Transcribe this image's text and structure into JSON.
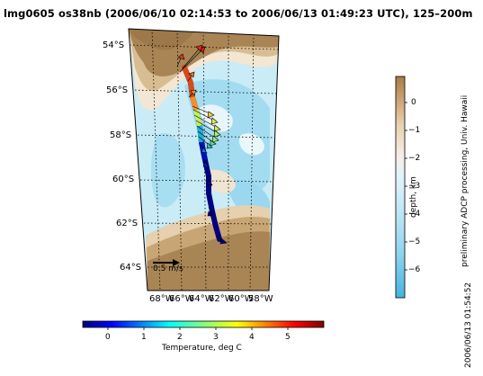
{
  "title": "lmg0605 os38nb (2006/06/10 02:14:53 to 2006/06/13 01:49:23 UTC), 125–200m",
  "lat_labels": [
    "54°S",
    "56°S",
    "58°S",
    "60°S",
    "62°S",
    "64°S"
  ],
  "lon_labels": [
    "68°W",
    "66°W",
    "64°W",
    "62°W",
    "60°W",
    "58°W"
  ],
  "scale_label": "0.5 m/s",
  "temperature_colorbar": {
    "title": "Temperature, deg C",
    "ticks": [
      "0",
      "1",
      "2",
      "3",
      "4",
      "5"
    ]
  },
  "depth_colorbar": {
    "title": "depth, km",
    "ticks": [
      "0",
      "−1",
      "−2",
      "−3",
      "−4",
      "−5",
      "−6"
    ]
  },
  "credit": "preliminary ADCP processing,  Univ. Hawaii",
  "timestamp": "2006/06/13 01:54:52",
  "colors": {
    "land": "#a98556",
    "shelf": "#d9bf95",
    "shallow": "#f2e4cf",
    "deep": "#c9ecf7",
    "deeper": "#9edcf2",
    "deepest": "#6ec6ea"
  }
}
